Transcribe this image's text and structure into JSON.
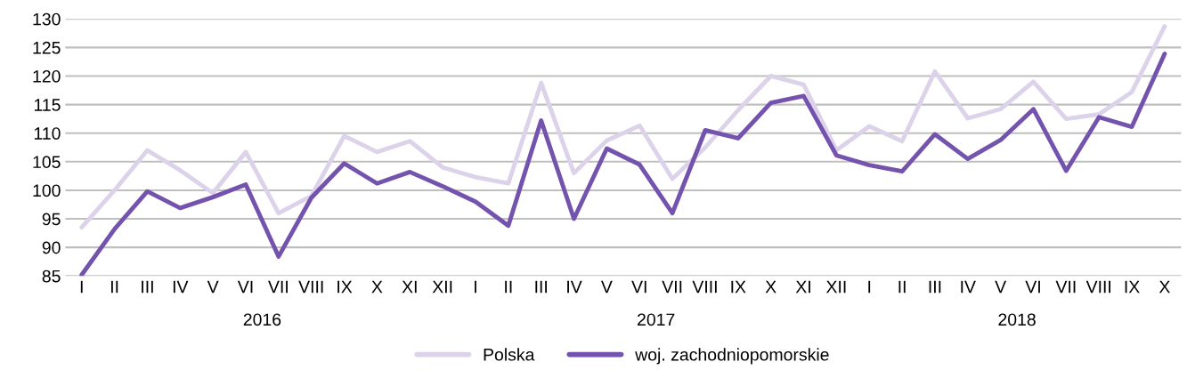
{
  "chart_data": {
    "type": "line",
    "categories": [
      "I",
      "II",
      "III",
      "IV",
      "V",
      "VI",
      "VII",
      "VIII",
      "IX",
      "X",
      "XI",
      "XII",
      "I",
      "II",
      "III",
      "IV",
      "V",
      "VI",
      "VII",
      "VIII",
      "IX",
      "X",
      "XI",
      "XII",
      "I",
      "II",
      "III",
      "IV",
      "V",
      "VI",
      "VII",
      "VIII",
      "IX",
      "X"
    ],
    "series": [
      {
        "name": "Polska",
        "color": "#dcd3ea",
        "values": [
          93.5,
          100,
          107,
          103.5,
          99.5,
          106.7,
          96,
          99,
          109.5,
          106.7,
          108.6,
          104,
          102.3,
          101.2,
          118.8,
          103,
          108.7,
          111.3,
          102,
          107.5,
          114,
          120,
          118.5,
          107,
          111.2,
          108.6,
          120.8,
          112.6,
          114.2,
          119,
          112.5,
          113.3,
          117.2,
          128.7
        ]
      },
      {
        "name": "woj. zachodniopomorskie",
        "color": "#7453ae",
        "values": [
          85.2,
          93.2,
          99.8,
          96.9,
          98.8,
          101,
          88.4,
          98.7,
          104.7,
          101.2,
          103.2,
          100.7,
          98,
          93.8,
          112.2,
          95,
          107.3,
          104.5,
          96,
          110.5,
          109.1,
          115.3,
          116.5,
          106.1,
          104.4,
          103.3,
          109.8,
          105.5,
          108.8,
          114.2,
          103.4,
          112.8,
          111.1,
          123.9
        ]
      }
    ],
    "annotations": [
      "2016",
      "2017",
      "2018"
    ],
    "ylim": [
      85,
      130
    ],
    "yticks": [
      85,
      90,
      95,
      100,
      105,
      110,
      115,
      120,
      125,
      130
    ],
    "grid": "y",
    "legend": "bottom",
    "marker": "none",
    "line_style": "solid"
  }
}
